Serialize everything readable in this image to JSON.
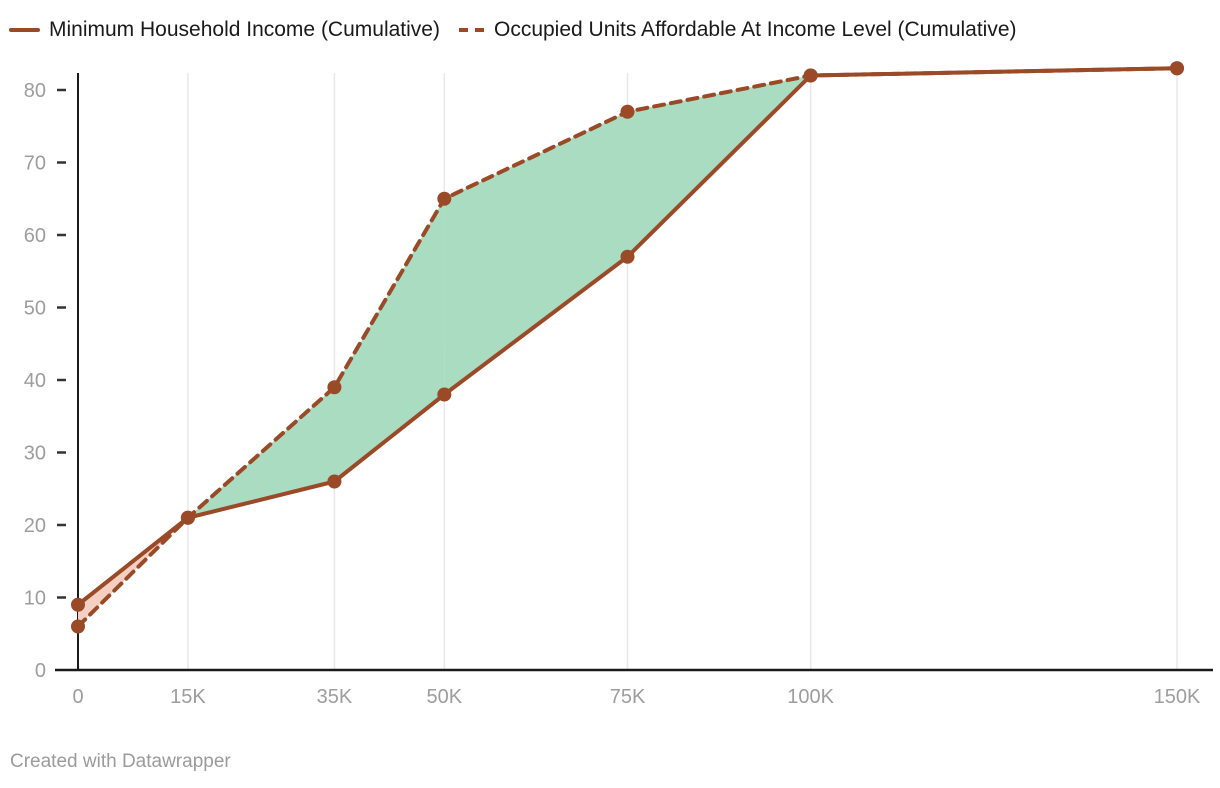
{
  "legend": {
    "items": [
      {
        "label": "Minimum Household Income (Cumulative)",
        "style": "solid"
      },
      {
        "label": "Occupied Units Affordable At Income Level (Cumulative)",
        "style": "dashed"
      }
    ]
  },
  "footer": {
    "credit": "Created with Datawrapper"
  },
  "colors": {
    "line": "#9a4a27",
    "green_fill": "#a9dcc1",
    "pink_fill": "#f6cfc3",
    "axis": "#1a1a1a",
    "tick_mark": "#333333",
    "tick_label": "#9d9d9d",
    "gridline": "#e8e8e8",
    "legend_text": "#1a1a1a",
    "footer_text": "#9b9b9b"
  },
  "chart_data": {
    "type": "line",
    "title": "",
    "xlabel": "",
    "ylabel": "",
    "x_labels": [
      "0",
      "15K",
      "35K",
      "50K",
      "75K",
      "100K",
      "150K"
    ],
    "x_values": [
      0,
      15000,
      35000,
      50000,
      75000,
      100000,
      150000
    ],
    "series": [
      {
        "name": "Minimum Household Income (Cumulative)",
        "style": "solid",
        "values": [
          9,
          21,
          26,
          38,
          57,
          82,
          83
        ]
      },
      {
        "name": "Occupied Units Affordable At Income Level (Cumulative)",
        "style": "dashed",
        "values": [
          6,
          21,
          39,
          65,
          77,
          82,
          83
        ]
      }
    ],
    "y_ticks": [
      0,
      10,
      20,
      30,
      40,
      50,
      60,
      70,
      80
    ],
    "ylim": [
      0,
      80
    ],
    "xlim": [
      0,
      150000
    ],
    "grid": "vertical-only",
    "legend_position": "top",
    "fill_between": {
      "dashed_above_solid": "green",
      "solid_above_dashed": "pink"
    }
  }
}
